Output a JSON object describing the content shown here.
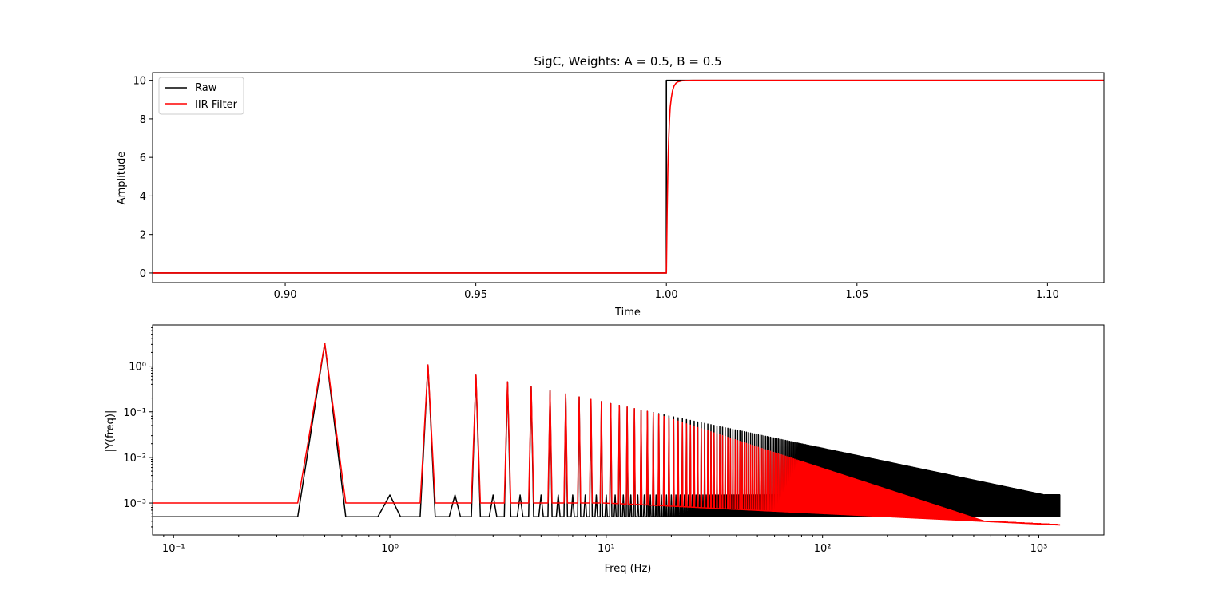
{
  "chart_data": [
    {
      "type": "line",
      "title": "SigC, Weights: A = 0.5, B = 0.5",
      "xlabel": "Time",
      "ylabel": "Amplitude",
      "xlim": [
        0.8652,
        1.1148
      ],
      "ylim": [
        -0.5,
        10.4
      ],
      "xticks": [
        0.9,
        0.95,
        1.0,
        1.05,
        1.1
      ],
      "xtick_labels": [
        "0.90",
        "0.95",
        "1.00",
        "1.05",
        "1.10"
      ],
      "yticks": [
        0,
        2,
        4,
        6,
        8,
        10
      ],
      "ytick_labels": [
        "0",
        "2",
        "4",
        "6",
        "8",
        "10"
      ],
      "grid": false,
      "legend": "top-left",
      "step_time": 1.0,
      "step_level": 10,
      "series": [
        {
          "name": "Raw",
          "color": "#000000",
          "x": [
            0.8652,
            0.99999,
            1.0,
            1.1148
          ],
          "y": [
            0,
            0,
            10,
            10
          ]
        },
        {
          "name": "IIR Filter",
          "color": "#ff0000",
          "x": [
            0.8652,
            1.0,
            1.0002,
            1.0004,
            1.0006,
            1.0008,
            1.001,
            1.0013,
            1.0016,
            1.002,
            1.0025,
            1.003,
            1.004,
            1.005,
            1.007,
            1.1148
          ],
          "y": [
            0,
            0,
            3.2,
            5.5,
            6.9,
            7.9,
            8.6,
            9.1,
            9.45,
            9.7,
            9.85,
            9.92,
            9.97,
            9.99,
            10,
            10
          ]
        }
      ]
    },
    {
      "type": "line",
      "title": "",
      "xlabel": "Freq (Hz)",
      "ylabel": "|Y(freq)|",
      "x_scale": "log",
      "y_scale": "log",
      "xlim": [
        0.08,
        2000
      ],
      "ylim": [
        0.0002,
        8
      ],
      "xticks": [
        0.1,
        1,
        10,
        100,
        1000
      ],
      "xtick_labels": [
        "10⁻¹",
        "10⁰",
        "10¹",
        "10²",
        "10³"
      ],
      "yticks": [
        0.001,
        0.01,
        0.1,
        1
      ],
      "ytick_labels": [
        "10⁻³",
        "10⁻²",
        "10⁻¹",
        "10⁰"
      ],
      "grid": false,
      "fundamental_hz": 0.5,
      "harmonic_spacing_hz": 1,
      "max_freq_hz": 1250,
      "series": [
        {
          "name": "Raw",
          "color": "#000000",
          "floor": 0.0005,
          "even_bump": 0.0015,
          "peak_at_fundamental": 3.18,
          "peak_decay": "3.18 / (2k+1)"
        },
        {
          "name": "IIR Filter",
          "color": "#ff0000",
          "floor": 0.001,
          "peak_at_fundamental": 3.18,
          "floor_at_max_freq": 0.00033
        }
      ]
    }
  ]
}
